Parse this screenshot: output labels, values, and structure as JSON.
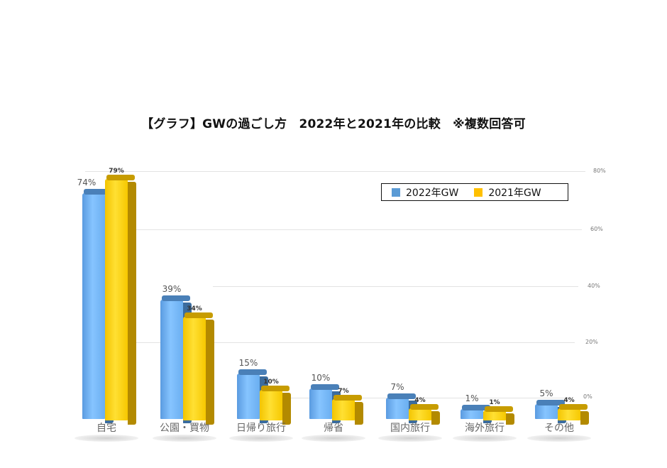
{
  "title": "【グラフ】GWの過ごし方　2022年と2021年の比較　※複数回答可",
  "legend": {
    "items": [
      {
        "label": "2022年GW",
        "color": "#5b9bd5"
      },
      {
        "label": "2021年GW",
        "color": "#ffc000"
      }
    ]
  },
  "axis": {
    "ticks": [
      "80%",
      "60%",
      "40%",
      "20%",
      "0%"
    ]
  },
  "chart_data": {
    "type": "bar",
    "title": "【グラフ】GWの過ごし方　2022年と2021年の比較　※複数回答可",
    "xlabel": "",
    "ylabel": "",
    "ylim": [
      0,
      80
    ],
    "grid": true,
    "legend_position": "top-right",
    "categories": [
      "自宅",
      "公園・買物",
      "日帰り旅行",
      "帰省",
      "国内旅行",
      "海外旅行",
      "その他"
    ],
    "series": [
      {
        "name": "2022年GW",
        "values": [
          74,
          39,
          15,
          10,
          7,
          1,
          5
        ],
        "color": "#5b9bd5"
      },
      {
        "name": "2021年GW",
        "values": [
          79,
          34,
          10,
          7,
          4,
          1,
          4
        ],
        "color": "#ffc000"
      }
    ],
    "data_labels": {
      "2022年GW": [
        "74%",
        "39%",
        "15%",
        "10%",
        "7%",
        "1%",
        "5%"
      ],
      "2021年GW": [
        "79%",
        "34%",
        "10%",
        "7%",
        "4%",
        "1%",
        "4%"
      ]
    },
    "y_tick_labels": [
      "0%",
      "20%",
      "40%",
      "60%",
      "80%"
    ]
  }
}
